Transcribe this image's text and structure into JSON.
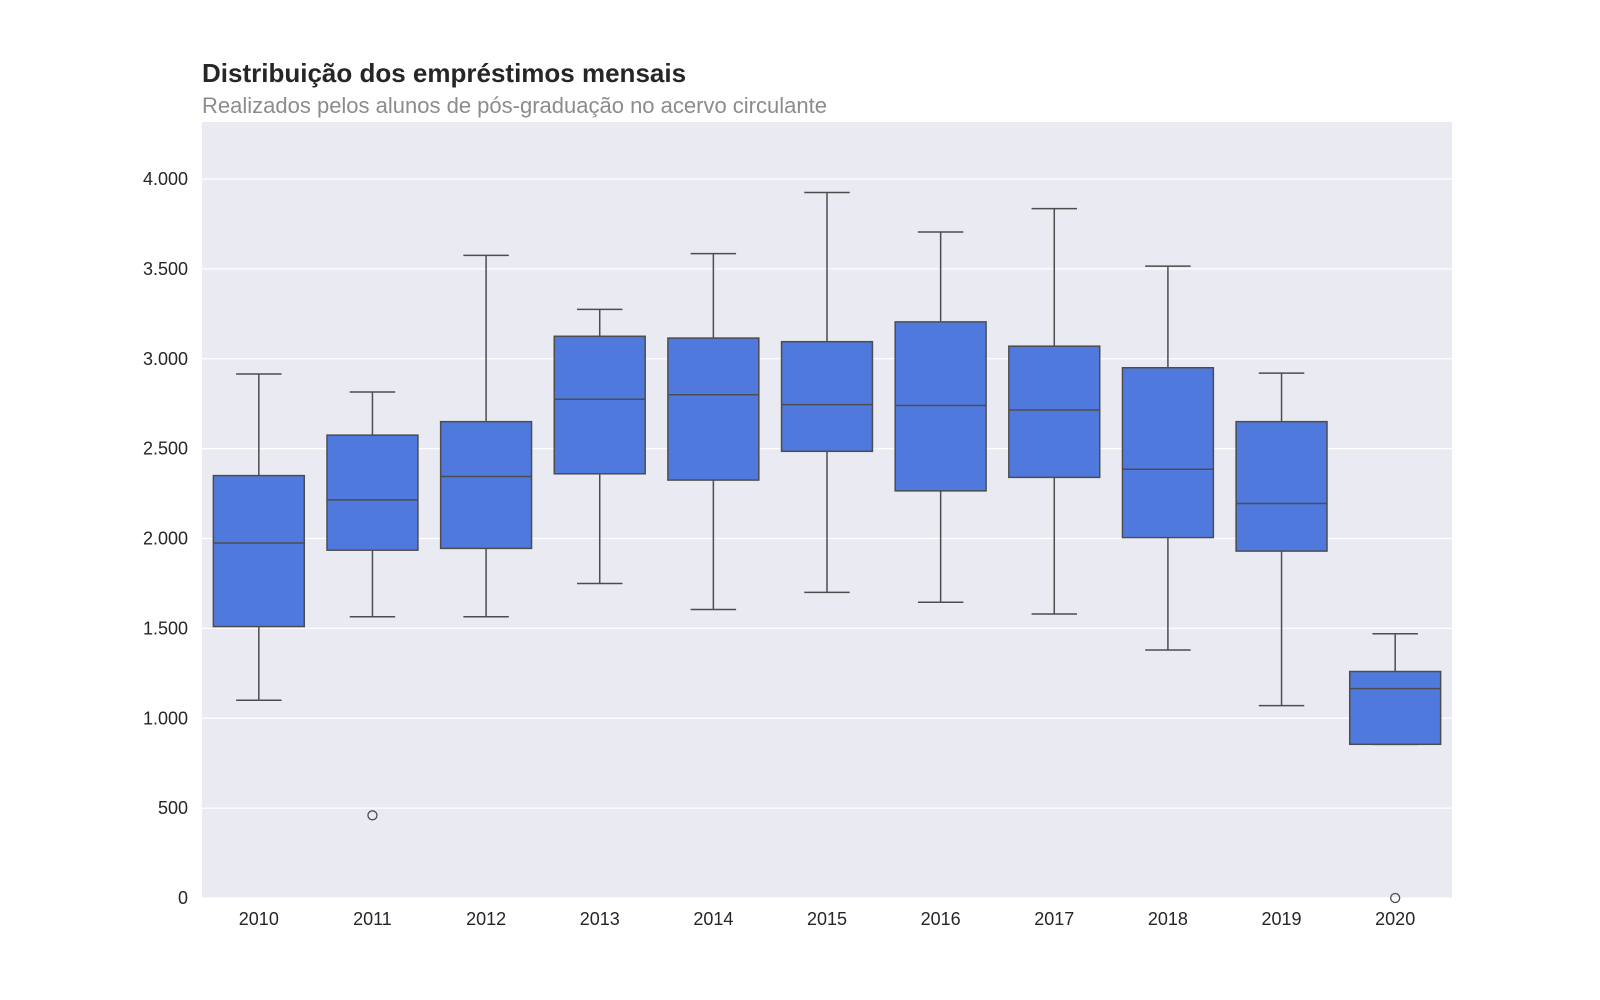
{
  "colors": {
    "background": "#ffffff",
    "plot_background": "#eaeaf2",
    "grid": "#ffffff",
    "box_fill": "#5079de",
    "box_line": "#4d4d4d",
    "title": "#262626",
    "subtitle": "#8c8c8c"
  },
  "chart_data": {
    "type": "box",
    "title": "Distribuição dos empréstimos mensais",
    "subtitle": "Realizados pelos alunos de pós-graduação no acervo circulante",
    "xlabel": "",
    "ylabel": "",
    "ylim": [
      0,
      4300
    ],
    "y_ticks": [
      0,
      500,
      1000,
      1500,
      2000,
      2500,
      3000,
      3500,
      4000
    ],
    "y_tick_labels": [
      "0",
      "500",
      "1.000",
      "1.500",
      "2.000",
      "2.500",
      "3.000",
      "3.500",
      "4.000"
    ],
    "grid": true,
    "categories": [
      "2010",
      "2011",
      "2012",
      "2013",
      "2014",
      "2015",
      "2016",
      "2017",
      "2018",
      "2019",
      "2020"
    ],
    "boxes": [
      {
        "category": "2010",
        "whisker_low": 1100,
        "q1": 1510,
        "median": 1975,
        "q3": 2350,
        "whisker_high": 2915,
        "outliers": []
      },
      {
        "category": "2011",
        "whisker_low": 1565,
        "q1": 1935,
        "median": 2215,
        "q3": 2575,
        "whisker_high": 2815,
        "outliers": [
          460
        ]
      },
      {
        "category": "2012",
        "whisker_low": 1565,
        "q1": 1945,
        "median": 2345,
        "q3": 2650,
        "whisker_high": 3575,
        "outliers": []
      },
      {
        "category": "2013",
        "whisker_low": 1750,
        "q1": 2360,
        "median": 2775,
        "q3": 3125,
        "whisker_high": 3275,
        "outliers": []
      },
      {
        "category": "2014",
        "whisker_low": 1605,
        "q1": 2325,
        "median": 2800,
        "q3": 3115,
        "whisker_high": 3585,
        "outliers": []
      },
      {
        "category": "2015",
        "whisker_low": 1700,
        "q1": 2485,
        "median": 2745,
        "q3": 3095,
        "whisker_high": 3925,
        "outliers": []
      },
      {
        "category": "2016",
        "whisker_low": 1645,
        "q1": 2265,
        "median": 2740,
        "q3": 3205,
        "whisker_high": 3705,
        "outliers": []
      },
      {
        "category": "2017",
        "whisker_low": 1580,
        "q1": 2340,
        "median": 2715,
        "q3": 3070,
        "whisker_high": 3835,
        "outliers": []
      },
      {
        "category": "2018",
        "whisker_low": 1380,
        "q1": 2005,
        "median": 2385,
        "q3": 2950,
        "whisker_high": 3515,
        "outliers": []
      },
      {
        "category": "2019",
        "whisker_low": 1070,
        "q1": 1930,
        "median": 2195,
        "q3": 2650,
        "whisker_high": 2920,
        "outliers": []
      },
      {
        "category": "2020",
        "whisker_low": 855,
        "q1": 855,
        "median": 1165,
        "q3": 1260,
        "whisker_high": 1470,
        "outliers": [
          0
        ]
      }
    ]
  }
}
